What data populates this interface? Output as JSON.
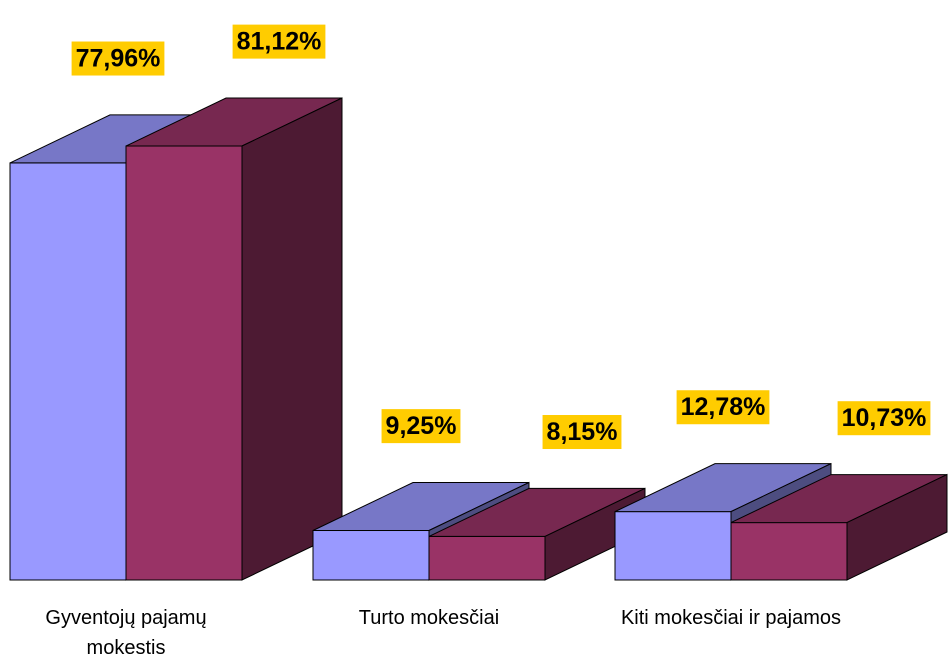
{
  "chart_data": {
    "type": "bar3d",
    "categories": [
      "Gyventojų pajamų mokestis",
      "Turto mokesčiai",
      "Kiti mokesčiai ir pajamos"
    ],
    "series": [
      {
        "color": "#9999ff",
        "values": [
          77.96,
          9.25,
          12.78
        ],
        "value_labels": [
          "77,96%",
          "9,25%",
          "12,78%"
        ]
      },
      {
        "color": "#993366",
        "values": [
          81.12,
          8.15,
          10.73
        ],
        "value_labels": [
          "81,12%",
          "8,15%",
          "10,73%"
        ]
      }
    ],
    "label_background": "#ffcc00"
  }
}
